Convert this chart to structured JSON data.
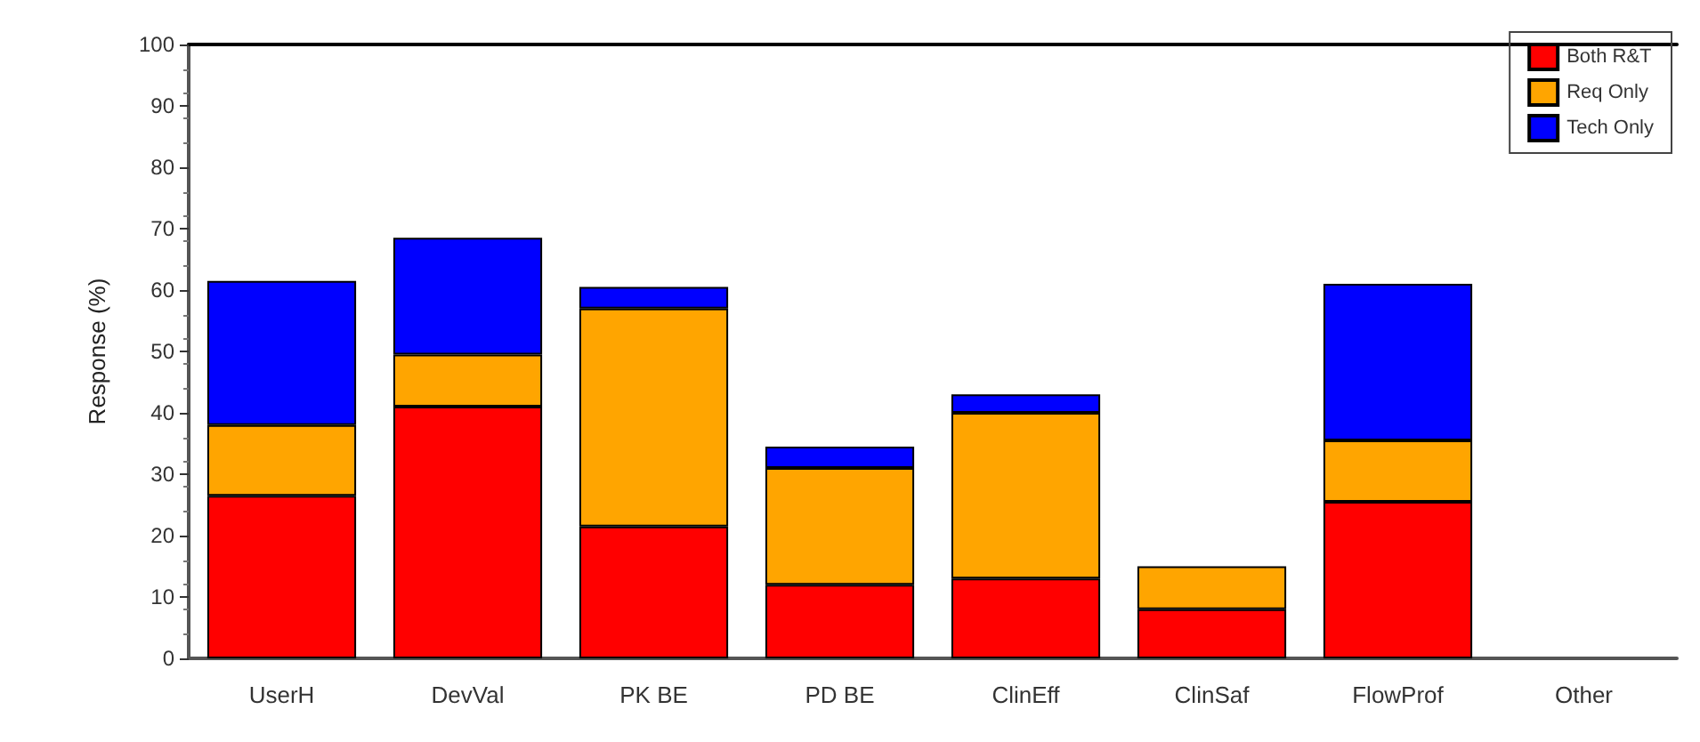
{
  "chart_data": {
    "type": "bar",
    "ylabel": "Response (%)",
    "stacked": true,
    "categories": [
      "UserH",
      "DevVal",
      "PK BE",
      "PD BE",
      "ClinEff",
      "ClinSaf",
      "FlowProf",
      "Other"
    ],
    "series": [
      {
        "name": "Both R&T",
        "color": "#ff0000",
        "values": [
          26.5,
          41,
          21.5,
          12,
          13,
          8,
          25.5,
          0
        ]
      },
      {
        "name": "Req Only",
        "color": "#ffa500",
        "values": [
          11.5,
          8.5,
          35.5,
          19,
          27,
          7,
          10,
          0
        ]
      },
      {
        "name": "Tech Only",
        "color": "#0000ff",
        "values": [
          23.5,
          19,
          3.5,
          3.5,
          3,
          0,
          25.5,
          0
        ]
      }
    ],
    "ylim": [
      0,
      100
    ],
    "yticks": [
      0,
      10,
      20,
      30,
      40,
      50,
      60,
      70,
      80,
      90,
      100
    ],
    "grid": false,
    "legend": "top right"
  }
}
